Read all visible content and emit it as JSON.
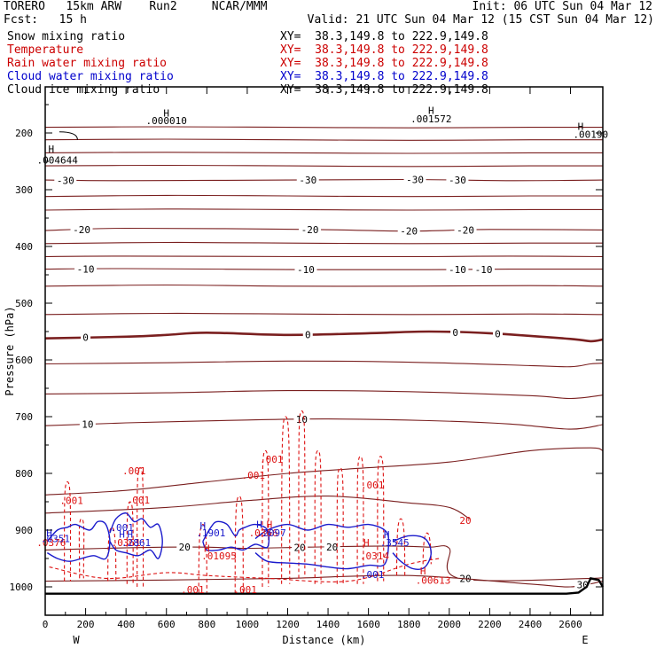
{
  "header": {
    "model": "TORERO   15km ARW    Run2     NCAR/MMM",
    "init": "Init: 06 UTC Sun 04 Mar 12",
    "fcst": "Fcst:   15 h",
    "valid": "Valid: 21 UTC Sun 04 Mar 12 (15 CST Sun 04 Mar 12)"
  },
  "fields": [
    {
      "name": "Snow mixing ratio",
      "color": "#000000",
      "xy": "XY=  38.3,149.8 to 222.9,149.8"
    },
    {
      "name": "Temperature",
      "color": "#cc0000",
      "xy": "XY=  38.3,149.8 to 222.9,149.8"
    },
    {
      "name": "Rain water mixing ratio",
      "color": "#cc0000",
      "xy": "XY=  38.3,149.8 to 222.9,149.8"
    },
    {
      "name": "Cloud water mixing ratio",
      "color": "#0000cc",
      "xy": "XY=  38.3,149.8 to 222.9,149.8"
    },
    {
      "name": "Cloud ice mixing ratio",
      "color": "#000000",
      "xy": "XY=  38.3,149.8 to 222.9,149.8"
    }
  ],
  "chart_data": {
    "type": "line",
    "xlabel": "Distance (km)",
    "ylabel": "Pressure (hPa)",
    "xlim": [
      0,
      2760
    ],
    "ylim": [
      1050,
      100
    ],
    "x_ticks": [
      0,
      200,
      400,
      600,
      800,
      1000,
      1200,
      1400,
      1600,
      1800,
      2000,
      2200,
      2400,
      2600
    ],
    "y_ticks": [
      200,
      300,
      400,
      500,
      600,
      700,
      800,
      900,
      1000
    ],
    "left_end_label": "W",
    "right_end_label": "E",
    "colors": {
      "temperature": "#7a1f1f",
      "rain": "#dd1111",
      "cloud_water": "#1a1acc",
      "snow": "#000000",
      "ground": "#000000"
    },
    "temperature_isotherms": [
      {
        "x": [
          0,
          600,
          1200,
          1800,
          2400,
          2760
        ],
        "p": [
          190,
          189,
          190,
          191,
          190,
          190
        ]
      },
      {
        "x": [
          0,
          600,
          1200,
          1800,
          2400,
          2760
        ],
        "p": [
          212,
          211,
          212,
          213,
          212,
          212
        ]
      },
      {
        "x": [
          0,
          600,
          1200,
          1800,
          2400,
          2760
        ],
        "p": [
          235,
          234,
          235,
          236,
          235,
          235
        ]
      },
      {
        "x": [
          0,
          600,
          1200,
          1800,
          2400,
          2760
        ],
        "p": [
          258,
          257,
          258,
          259,
          258,
          258
        ]
      },
      {
        "x": [
          0,
          400,
          1200,
          1800,
          2300,
          2760
        ],
        "p": [
          283,
          284,
          283,
          282,
          284,
          283
        ],
        "label": "-30",
        "label_at": [
          100,
          1300,
          1830,
          2040
        ]
      },
      {
        "x": [
          0,
          600,
          1200,
          1800,
          2400,
          2760
        ],
        "p": [
          312,
          310,
          311,
          312,
          311,
          311
        ]
      },
      {
        "x": [
          0,
          600,
          1200,
          1800,
          2400,
          2760
        ],
        "p": [
          336,
          334,
          335,
          336,
          335,
          335
        ]
      },
      {
        "x": [
          0,
          400,
          1300,
          1800,
          2200,
          2760
        ],
        "p": [
          372,
          368,
          370,
          373,
          370,
          371
        ],
        "label": "-20",
        "label_at": [
          180,
          1310,
          1800,
          2080
        ]
      },
      {
        "x": [
          0,
          600,
          1200,
          1800,
          2400,
          2760
        ],
        "p": [
          395,
          393,
          394,
          395,
          394,
          394
        ]
      },
      {
        "x": [
          0,
          400,
          1300,
          1900,
          2300,
          2760
        ],
        "p": [
          418,
          417,
          418,
          418,
          417,
          418
        ]
      },
      {
        "x": [
          0,
          400,
          1300,
          1900,
          2300,
          2760
        ],
        "p": [
          440,
          439,
          441,
          441,
          440,
          440
        ],
        "label": "-10",
        "label_at": [
          200,
          1290,
          2040,
          2170
        ]
      },
      {
        "x": [
          0,
          600,
          1200,
          1800,
          2400,
          2760
        ],
        "p": [
          470,
          468,
          470,
          470,
          469,
          470
        ]
      },
      {
        "x": [
          0,
          600,
          1200,
          1800,
          2400,
          2760
        ],
        "p": [
          520,
          518,
          519,
          520,
          519,
          520
        ]
      },
      {
        "x": [
          0,
          400,
          600,
          800,
          1200,
          1600,
          1900,
          2200,
          2600,
          2700,
          2760
        ],
        "p": [
          562,
          559,
          556,
          552,
          556,
          553,
          550,
          553,
          563,
          567,
          564
        ],
        "label": "0",
        "label_at": [
          200,
          1300,
          2030,
          2240
        ],
        "bold": true
      },
      {
        "x": [
          0,
          600,
          1200,
          1800,
          2400,
          2600,
          2700,
          2760
        ],
        "p": [
          607,
          605,
          602,
          604,
          610,
          612,
          607,
          606
        ]
      },
      {
        "x": [
          0,
          600,
          1200,
          1800,
          2400,
          2600,
          2760
        ],
        "p": [
          660,
          658,
          654,
          656,
          663,
          668,
          662
        ]
      },
      {
        "x": [
          0,
          400,
          1000,
          1400,
          1900,
          2300,
          2600,
          2760
        ],
        "p": [
          716,
          711,
          706,
          704,
          707,
          713,
          722,
          714
        ],
        "label": "10",
        "label_at": [
          210,
          1270
        ]
      },
      {
        "x": [
          0,
          400,
          800,
          1200,
          1600,
          2000,
          2400,
          2700,
          2760
        ],
        "p": [
          838,
          830,
          815,
          800,
          790,
          780,
          760,
          755,
          760
        ]
      },
      {
        "x": [
          0,
          600,
          1000,
          1400,
          1800,
          2000,
          2100
        ],
        "p": [
          870,
          860,
          848,
          840,
          852,
          860,
          880
        ]
      },
      {
        "x": [
          0,
          300,
          600,
          800,
          1000,
          1300,
          1700,
          1900,
          2000,
          2050,
          2700,
          2760
        ],
        "p": [
          935,
          932,
          930,
          930,
          932,
          930,
          928,
          930,
          932,
          985,
          985,
          980
        ],
        "label": "20",
        "label_at": [
          690,
          1260,
          1420,
          2080
        ]
      },
      {
        "x": [
          0,
          600,
          1200,
          1800,
          2400,
          2600,
          2760
        ],
        "p": [
          990,
          988,
          985,
          980,
          995,
          1000,
          990
        ],
        "label": "30",
        "label_at": [
          2660
        ]
      }
    ],
    "ground": {
      "x": [
        0,
        2580,
        2640,
        2680,
        2700,
        2740,
        2760
      ],
      "p": [
        1012,
        1012,
        1010,
        1000,
        985,
        988,
        1000
      ]
    },
    "tropopause_hint": {
      "x": [
        70,
        160
      ],
      "p": [
        198,
        212
      ]
    },
    "rain_cells": [
      {
        "x": 110,
        "top": 815,
        "bottom": 990,
        "width": 30
      },
      {
        "x": 180,
        "top": 880,
        "bottom": 985,
        "width": 20
      },
      {
        "x": 330,
        "top": 895,
        "bottom": 990,
        "width": 40
      },
      {
        "x": 420,
        "top": 850,
        "bottom": 995,
        "width": 30
      },
      {
        "x": 470,
        "top": 790,
        "bottom": 1000,
        "width": 30
      },
      {
        "x": 780,
        "top": 890,
        "bottom": 1010,
        "width": 40
      },
      {
        "x": 960,
        "top": 840,
        "bottom": 1012,
        "width": 40
      },
      {
        "x": 1090,
        "top": 760,
        "bottom": 1000,
        "width": 30
      },
      {
        "x": 1190,
        "top": 700,
        "bottom": 995,
        "width": 40
      },
      {
        "x": 1270,
        "top": 690,
        "bottom": 985,
        "width": 30
      },
      {
        "x": 1350,
        "top": 760,
        "bottom": 995,
        "width": 30
      },
      {
        "x": 1460,
        "top": 790,
        "bottom": 995,
        "width": 30
      },
      {
        "x": 1560,
        "top": 770,
        "bottom": 995,
        "width": 30
      },
      {
        "x": 1660,
        "top": 770,
        "bottom": 990,
        "width": 30
      },
      {
        "x": 1760,
        "top": 880,
        "bottom": 980,
        "width": 40
      },
      {
        "x": 1890,
        "top": 905,
        "bottom": 960,
        "width": 40
      }
    ],
    "rain_base": {
      "x": [
        20,
        300,
        600,
        800,
        1100,
        1500,
        1800,
        1950
      ],
      "p": [
        965,
        985,
        975,
        980,
        985,
        990,
        960,
        950
      ]
    },
    "cloud_water_cells": [
      {
        "x": [
          10,
          60,
          110,
          150,
          220,
          260,
          300,
          320,
          300,
          240,
          180,
          120,
          60,
          10
        ],
        "p": [
          920,
          900,
          895,
          890,
          900,
          885,
          890,
          920,
          950,
          945,
          950,
          955,
          950,
          940
        ]
      },
      {
        "x": [
          320,
          350,
          400,
          440,
          480,
          520,
          560,
          580,
          560,
          520,
          460,
          400,
          350,
          320
        ],
        "p": [
          905,
          880,
          870,
          885,
          880,
          895,
          890,
          920,
          950,
          935,
          945,
          940,
          935,
          920
        ]
      },
      {
        "x": [
          780,
          820,
          850,
          900,
          940,
          960,
          990,
          1040,
          1100,
          1100,
          1040,
          980,
          920,
          860,
          800,
          780
        ],
        "p": [
          920,
          895,
          885,
          890,
          910,
          900,
          895,
          890,
          900,
          930,
          925,
          935,
          930,
          935,
          935,
          920
        ]
      },
      {
        "x": [
          1040,
          1100,
          1200,
          1300,
          1400,
          1500,
          1600,
          1680,
          1700,
          1680,
          1600,
          1500,
          1400,
          1300,
          1200,
          1100,
          1040
        ],
        "p": [
          915,
          900,
          890,
          900,
          890,
          895,
          890,
          900,
          920,
          960,
          962,
          968,
          965,
          960,
          958,
          955,
          940
        ]
      },
      {
        "x": [
          1720,
          1800,
          1880,
          1910,
          1880,
          1820,
          1760,
          1720
        ],
        "p": [
          920,
          910,
          915,
          940,
          965,
          968,
          955,
          940
        ]
      }
    ],
    "annotations": [
      {
        "text": ".000010",
        "x": 600,
        "p": 178,
        "color": "black"
      },
      {
        "text": "H",
        "x": 600,
        "p": 165,
        "color": "black"
      },
      {
        "text": ".001572",
        "x": 1910,
        "p": 175,
        "color": "black"
      },
      {
        "text": "H",
        "x": 1910,
        "p": 160,
        "color": "black"
      },
      {
        "text": ".00190",
        "x": 2700,
        "p": 202,
        "color": "black"
      },
      {
        "text": "H",
        "x": 2650,
        "p": 188,
        "color": "black"
      },
      {
        "text": ".004644",
        "x": 60,
        "p": 248,
        "color": "black"
      },
      {
        "text": "H",
        "x": 30,
        "p": 228,
        "color": "black"
      },
      {
        "text": ".001",
        "x": 440,
        "p": 795,
        "color": "red"
      },
      {
        "text": ".001",
        "x": 130,
        "p": 848,
        "color": "red"
      },
      {
        "text": ".001",
        "x": 460,
        "p": 847,
        "color": "red"
      },
      {
        "text": ".001",
        "x": 1120,
        "p": 775,
        "color": "red"
      },
      {
        "text": ".001",
        "x": 1030,
        "p": 803,
        "color": "red"
      },
      {
        "text": ".001",
        "x": 1620,
        "p": 820,
        "color": "red"
      },
      {
        "text": ".001",
        "x": 730,
        "p": 1005,
        "color": "red"
      },
      {
        "text": ".001",
        "x": 990,
        "p": 1005,
        "color": "red"
      },
      {
        "text": ".001",
        "x": 380,
        "p": 895,
        "color": "blue"
      },
      {
        "text": ".001",
        "x": 1620,
        "p": 978,
        "color": "blue"
      },
      {
        "text": ".0376",
        "x": 30,
        "p": 922,
        "color": "red"
      },
      {
        "text": ".0351",
        "x": 50,
        "p": 915,
        "color": "blue"
      },
      {
        "text": ".0361",
        "x": 400,
        "p": 922,
        "color": "red"
      },
      {
        "text": ".2861",
        "x": 450,
        "p": 922,
        "color": "blue"
      },
      {
        "text": "H",
        "x": 380,
        "p": 907,
        "color": "blue"
      },
      {
        "text": "H",
        "x": 420,
        "p": 907,
        "color": "blue"
      },
      {
        "text": "H",
        "x": 20,
        "p": 905,
        "color": "blue"
      },
      {
        "text": ".1901",
        "x": 820,
        "p": 905,
        "color": "blue"
      },
      {
        "text": "H",
        "x": 780,
        "p": 892,
        "color": "blue"
      },
      {
        "text": ".0366",
        "x": 1080,
        "p": 905,
        "color": "red"
      },
      {
        "text": "H",
        "x": 1110,
        "p": 890,
        "color": "red"
      },
      {
        "text": ".2097",
        "x": 1120,
        "p": 905,
        "color": "blue"
      },
      {
        "text": "H",
        "x": 1060,
        "p": 890,
        "color": "blue"
      },
      {
        "text": ".01095",
        "x": 860,
        "p": 945,
        "color": "red"
      },
      {
        "text": "H",
        "x": 800,
        "p": 932,
        "color": "red"
      },
      {
        "text": ".3545",
        "x": 1730,
        "p": 922,
        "color": "blue"
      },
      {
        "text": "H",
        "x": 1690,
        "p": 908,
        "color": "blue"
      },
      {
        "text": ".0314",
        "x": 1630,
        "p": 945,
        "color": "red"
      },
      {
        "text": "H",
        "x": 1590,
        "p": 922,
        "color": "red"
      },
      {
        "text": ".00613",
        "x": 1920,
        "p": 988,
        "color": "red"
      },
      {
        "text": "H",
        "x": 1870,
        "p": 972,
        "color": "red"
      },
      {
        "text": "20",
        "x": 2080,
        "p": 883,
        "color": "red"
      }
    ]
  }
}
